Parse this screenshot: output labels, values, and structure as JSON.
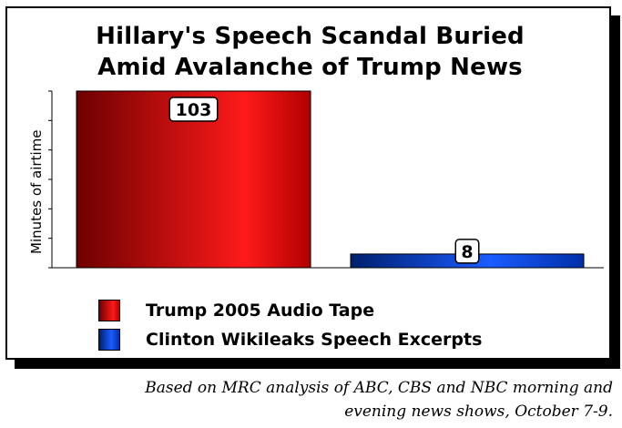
{
  "chart_data": {
    "type": "bar",
    "title_lines": [
      "Hillary's Speech Scandal Buried",
      "Amid Avalanche of Trump News"
    ],
    "ylabel": "Minutes of airtime",
    "xlabel": "",
    "categories": [
      "Trump 2005 Audio Tape",
      "Clinton Wikileaks Speech Excerpts"
    ],
    "values": [
      103,
      8
    ],
    "data_labels": [
      "103",
      "8"
    ],
    "colors": [
      "#d40000",
      "#0044cc"
    ],
    "ylim": [
      0,
      103
    ],
    "grid": false,
    "legend_position": "bottom"
  },
  "caption_lines": [
    "Based on MRC analysis of ABC, CBS and NBC morning and",
    "evening news shows, October 7-9."
  ]
}
